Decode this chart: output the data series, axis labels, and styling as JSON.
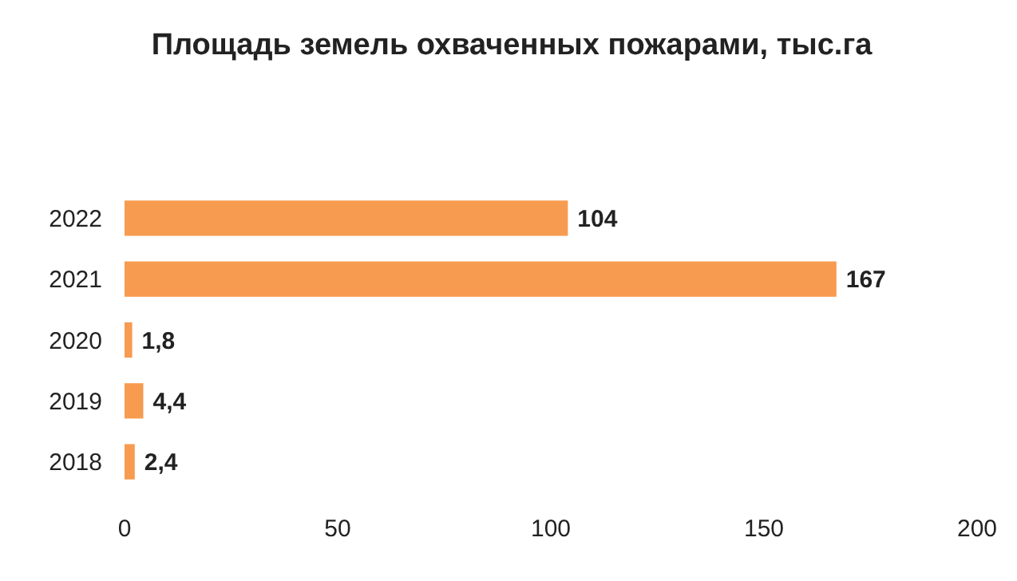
{
  "chart_data": {
    "type": "bar",
    "orientation": "horizontal",
    "title": "Площадь земель охваченных пожарами, тыс.га",
    "categories": [
      "2022",
      "2021",
      "2020",
      "2019",
      "2018"
    ],
    "values": [
      104,
      167,
      1.8,
      4.4,
      2.4
    ],
    "value_labels": [
      "104",
      "167",
      "1,8",
      "4,4",
      "2,4"
    ],
    "color": "#f79b50",
    "xlim": [
      0,
      200
    ],
    "xticks": [
      0,
      50,
      100,
      150,
      200
    ],
    "grid": false
  }
}
